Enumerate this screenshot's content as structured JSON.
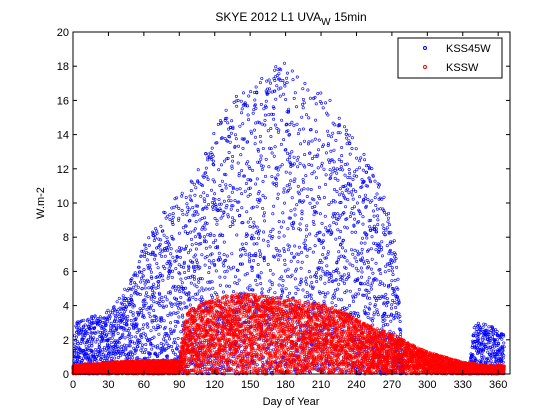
{
  "chart_data": {
    "type": "scatter",
    "title": "SKYE 2012 L1 UVA",
    "title_subscript": "W",
    "title_suffix": " 15min",
    "xlabel": "Day of Year",
    "ylabel": "W.m-2",
    "xlim": [
      0,
      370
    ],
    "ylim": [
      0,
      20
    ],
    "xticks": [
      0,
      30,
      60,
      90,
      120,
      150,
      180,
      210,
      240,
      270,
      300,
      330,
      360
    ],
    "yticks": [
      0,
      2,
      4,
      6,
      8,
      10,
      12,
      14,
      16,
      18,
      20
    ],
    "legend_position": "top-right",
    "series": [
      {
        "name": "KSS45W",
        "color": "#0000ff",
        "envelope": {
          "x": [
            0,
            2,
            10,
            20,
            30,
            40,
            50,
            60,
            70,
            80,
            90,
            100,
            110,
            120,
            130,
            140,
            150,
            160,
            170,
            180,
            190,
            200,
            210,
            220,
            230,
            240,
            250,
            260,
            270,
            275,
            280,
            285,
            290,
            300,
            310,
            320,
            330,
            335,
            340,
            345,
            350,
            355,
            360,
            365
          ],
          "y": [
            0,
            3.0,
            3.2,
            3.5,
            3.8,
            4.5,
            5.8,
            7.5,
            8.8,
            9.8,
            10.5,
            11.5,
            12.5,
            14.2,
            15.6,
            16.4,
            16.6,
            17.5,
            18.0,
            18.4,
            17.6,
            17.0,
            16.6,
            15.8,
            14.7,
            13.5,
            12.5,
            11.0,
            9.2,
            6.0,
            0,
            0,
            0,
            0,
            0,
            0,
            0,
            0,
            3.0,
            3.0,
            3.0,
            2.8,
            2.5,
            2.6
          ]
        }
      },
      {
        "name": "KSSW",
        "color": "#ff0000",
        "envelope": {
          "x": [
            0,
            10,
            20,
            30,
            60,
            90,
            95,
            100,
            110,
            120,
            130,
            140,
            150,
            160,
            170,
            180,
            190,
            200,
            210,
            220,
            230,
            240,
            250,
            260,
            270,
            280,
            290,
            300,
            310,
            320,
            330,
            340,
            350,
            360,
            365
          ],
          "y": [
            0.5,
            0.6,
            0.6,
            0.7,
            0.8,
            0.8,
            3.5,
            3.8,
            4.2,
            4.5,
            4.6,
            4.7,
            4.7,
            4.6,
            4.5,
            4.4,
            4.3,
            4.2,
            4.1,
            3.9,
            3.6,
            3.2,
            2.9,
            2.6,
            2.4,
            2.0,
            1.6,
            1.3,
            1.1,
            0.9,
            0.7,
            0.6,
            0.5,
            0.5,
            0.5
          ]
        }
      }
    ]
  }
}
